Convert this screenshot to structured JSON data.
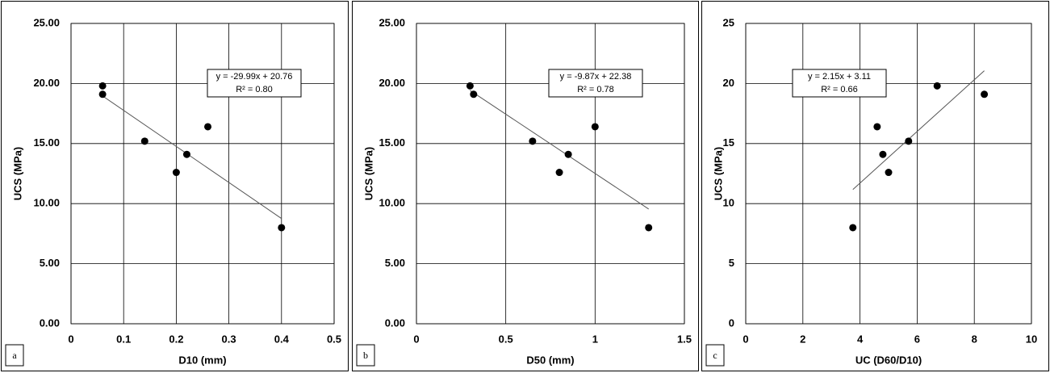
{
  "chart_data": [
    {
      "type": "scatter",
      "panel_label": "a",
      "x_label": "D10 (mm)",
      "y_label": "UCS (MPa)",
      "x": [
        0.06,
        0.06,
        0.14,
        0.2,
        0.22,
        0.26,
        0.4
      ],
      "values": [
        19.8,
        19.1,
        15.2,
        12.6,
        14.1,
        16.4,
        8.0
      ],
      "color": "#000000",
      "grid": true,
      "xlim": [
        0,
        0.5
      ],
      "xticks": [
        0,
        0.1,
        0.2,
        0.3,
        0.4,
        0.5
      ],
      "ylim": [
        0,
        25
      ],
      "yticks": [
        {
          "value": 0,
          "label": "0.00"
        },
        {
          "value": 5,
          "label": "5.00"
        },
        {
          "value": 10,
          "label": "10.00"
        },
        {
          "value": 15,
          "label": "15.00"
        },
        {
          "value": 20,
          "label": "20.00"
        },
        {
          "value": 25,
          "label": "25.00"
        }
      ],
      "trendline": {
        "x": [
          0.06,
          0.4
        ],
        "values": [
          18.96,
          8.76
        ]
      },
      "annotation": [
        "y = -29.99x + 20.76",
        "R² = 0.80"
      ]
    },
    {
      "type": "scatter",
      "panel_label": "b",
      "x_label": "D50 (mm)",
      "y_label": "UCS (MPa)",
      "x": [
        0.3,
        0.32,
        0.65,
        0.8,
        0.85,
        1.0,
        1.3
      ],
      "values": [
        19.8,
        19.1,
        15.2,
        12.6,
        14.1,
        16.4,
        8.0
      ],
      "color": "#000000",
      "grid": true,
      "xlim": [
        0,
        1.5
      ],
      "xticks": [
        0,
        0.5,
        1,
        1.5
      ],
      "ylim": [
        0,
        25
      ],
      "yticks": [
        {
          "value": 0,
          "label": "0.00"
        },
        {
          "value": 5,
          "label": "5.00"
        },
        {
          "value": 10,
          "label": "10.00"
        },
        {
          "value": 15,
          "label": "15.00"
        },
        {
          "value": 20,
          "label": "20.00"
        },
        {
          "value": 25,
          "label": "25.00"
        }
      ],
      "trendline": {
        "x": [
          0.3,
          1.3
        ],
        "values": [
          19.42,
          9.55
        ]
      },
      "annotation": [
        "y = -9.87x + 22.38",
        "R² = 0.78"
      ]
    },
    {
      "type": "scatter",
      "panel_label": "c",
      "x_label": "UC (D60/D10)",
      "y_label": "UCS (MPa)",
      "x": [
        3.75,
        4.6,
        4.8,
        5.0,
        5.7,
        6.7,
        8.35
      ],
      "values": [
        8.0,
        16.4,
        14.1,
        12.6,
        15.2,
        19.8,
        19.1
      ],
      "color": "#000000",
      "grid": true,
      "xlim": [
        0,
        10
      ],
      "xticks": [
        0,
        2,
        4,
        6,
        8,
        10
      ],
      "ylim": [
        0,
        25
      ],
      "yticks": [
        0,
        5,
        10,
        15,
        20,
        25
      ],
      "trendline": {
        "x": [
          3.75,
          8.35
        ],
        "values": [
          11.17,
          21.06
        ]
      },
      "annotation": [
        "y = 2.15x + 3.11",
        "R² = 0.66"
      ]
    }
  ]
}
